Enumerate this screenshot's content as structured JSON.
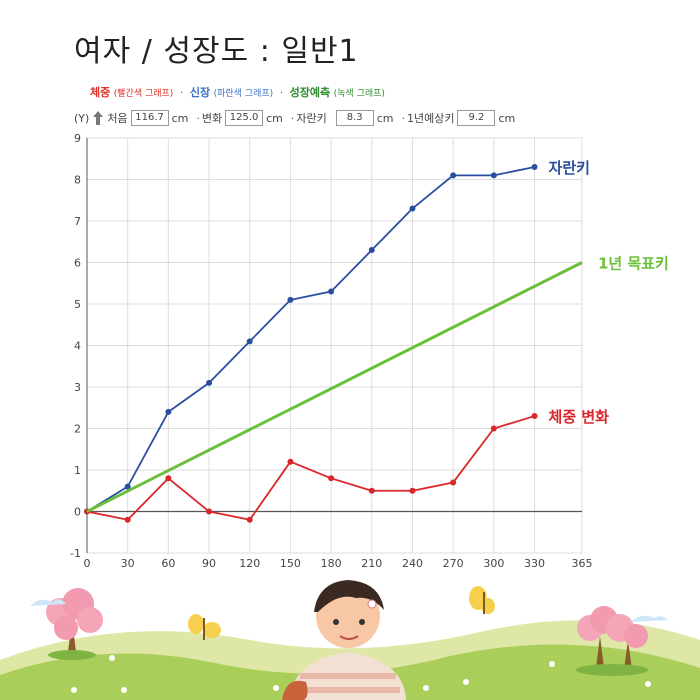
{
  "title": "여자 / 성장도 : 일반1",
  "legend": {
    "weight": {
      "name": "체중",
      "note": "(빨간색 그래프)",
      "color": "#e0322a"
    },
    "height": {
      "name": "신장",
      "note": "(파란색 그래프)",
      "color": "#3b6fc4"
    },
    "forecast": {
      "name": "성장예측",
      "note": "(녹색 그래프)",
      "color": "#2e8b2e"
    },
    "separator": "·"
  },
  "info": {
    "y_label": "(Y)",
    "start_label": "처음",
    "start_value": "116.7",
    "start_unit": "cm",
    "change_label": "변화",
    "change_value": "125.0",
    "change_unit": "cm",
    "growth_label": "자란키",
    "growth_value": "8.3",
    "growth_unit": "cm",
    "expected_label": "1년예상키",
    "expected_value": "9.2",
    "expected_unit": "cm"
  },
  "chart_data": {
    "type": "line",
    "x": [
      0,
      30,
      60,
      90,
      120,
      150,
      180,
      210,
      240,
      270,
      300,
      330
    ],
    "xticks": [
      0,
      30,
      60,
      90,
      120,
      150,
      180,
      210,
      240,
      270,
      300,
      330,
      365
    ],
    "yticks": [
      -1,
      0,
      1,
      2,
      3,
      4,
      5,
      6,
      7,
      8,
      9
    ],
    "xlim": [
      0,
      365
    ],
    "ylim": [
      -1,
      9
    ],
    "grid": true,
    "series": [
      {
        "name": "자란키",
        "color": "#2a4fa0",
        "values": [
          0,
          0.6,
          2.4,
          3.1,
          4.1,
          5.1,
          5.3,
          6.3,
          7.3,
          8.1,
          8.1,
          8.3
        ]
      },
      {
        "name": "체중 변화",
        "color": "#d9262a",
        "values": [
          0,
          -0.2,
          0.8,
          0,
          -0.2,
          1.2,
          0.8,
          0.5,
          0.5,
          0.7,
          2.0,
          2.3
        ]
      },
      {
        "name": "1년 목표키",
        "color": "#6cbf3a",
        "x": [
          0,
          365
        ],
        "values": [
          0,
          6.0
        ]
      }
    ]
  }
}
